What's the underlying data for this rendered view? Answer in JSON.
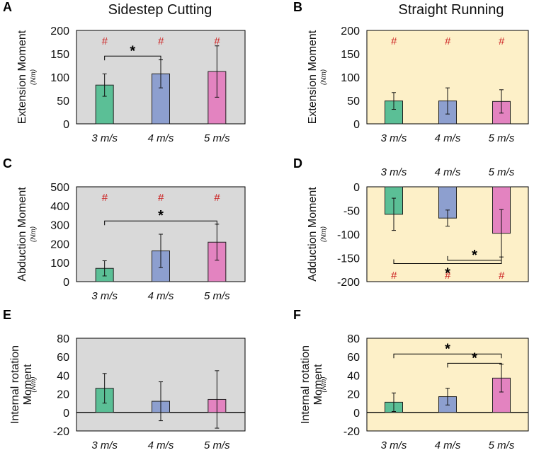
{
  "figure": {
    "column_titles": [
      "Sidestep Cutting",
      "Straight Running"
    ],
    "sig_hash_symbol": "#",
    "sig_star_symbol": "*",
    "colors": {
      "bar_fills": [
        "#5bbf96",
        "#8d9fcf",
        "#e383c0"
      ],
      "bar_stroke": "#222222",
      "hash_color": "#cc2222",
      "cutting_background": "#d9d9d9",
      "running_background": "#fdf0c8"
    }
  },
  "chart_data": [
    {
      "panel": "A",
      "type": "bar",
      "title": "Sidestep Cutting",
      "ylabel": "Extension Moment",
      "yunit": "(Nm)",
      "categories": [
        "3 m/s",
        "4 m/s",
        "5 m/s"
      ],
      "values": [
        83,
        107,
        112
      ],
      "errors": [
        24,
        30,
        55
      ],
      "ylim": [
        0,
        200
      ],
      "yticks": [
        "0",
        "50",
        "100",
        "150",
        "200"
      ],
      "category_axis": "bottom",
      "hash": [
        true,
        true,
        true
      ],
      "brackets": [
        {
          "from": 0,
          "to": 1
        }
      ]
    },
    {
      "panel": "B",
      "type": "bar",
      "title": "Straight Running",
      "ylabel": "Extension Moment",
      "yunit": "(Nm)",
      "categories": [
        "3 m/s",
        "4 m/s",
        "5 m/s"
      ],
      "values": [
        49,
        49,
        48
      ],
      "errors": [
        18,
        28,
        25
      ],
      "ylim": [
        0,
        200
      ],
      "yticks": [
        "0",
        "50",
        "100",
        "150",
        "200"
      ],
      "category_axis": "bottom",
      "hash": [
        true,
        true,
        true
      ],
      "brackets": []
    },
    {
      "panel": "C",
      "type": "bar",
      "title": "Sidestep Cutting",
      "ylabel": "Abduction Moment",
      "yunit": "(Nm)",
      "categories": [
        "3 m/s",
        "4 m/s",
        "5 m/s"
      ],
      "values": [
        70,
        162,
        208
      ],
      "errors": [
        40,
        88,
        95
      ],
      "ylim": [
        0,
        500
      ],
      "yticks": [
        "0",
        "100",
        "200",
        "300",
        "400",
        "500"
      ],
      "category_axis": "bottom",
      "hash": [
        true,
        true,
        true
      ],
      "brackets": [
        {
          "from": 0,
          "to": 2
        }
      ]
    },
    {
      "panel": "D",
      "type": "bar",
      "title": "Straight Running",
      "ylabel": "Adduction Moment",
      "yunit": "(Nm)",
      "categories": [
        "3 m/s",
        "4 m/s",
        "5 m/s"
      ],
      "values": [
        -58,
        -66,
        -98
      ],
      "errors": [
        34,
        17,
        50
      ],
      "ylim": [
        -200,
        0
      ],
      "yticks": [
        "0",
        "-50",
        "-100",
        "-150",
        "-200"
      ],
      "category_axis": "top",
      "hash": [
        true,
        true,
        true
      ],
      "brackets": [
        {
          "from": 1,
          "to": 2
        },
        {
          "from": 0,
          "to": 2
        }
      ]
    },
    {
      "panel": "E",
      "type": "bar",
      "title": "Sidestep Cutting",
      "ylabel": "Internal rotation Moment",
      "yunit": "(Nm)",
      "categories": [
        "3 m/s",
        "4 m/s",
        "5 m/s"
      ],
      "values": [
        26,
        12,
        14
      ],
      "errors": [
        16,
        21,
        31
      ],
      "ylim": [
        -20,
        80
      ],
      "yticks": [
        "-20",
        "0",
        "20",
        "40",
        "60",
        "80"
      ],
      "category_axis": "bottom",
      "hash": [
        false,
        false,
        false
      ],
      "brackets": []
    },
    {
      "panel": "F",
      "type": "bar",
      "title": "Straight Running",
      "ylabel": "Internal rotation Moment",
      "yunit": "(Nm)",
      "categories": [
        "3 m/s",
        "4 m/s",
        "5 m/s"
      ],
      "values": [
        11,
        17,
        37
      ],
      "errors": [
        10,
        9,
        15
      ],
      "ylim": [
        -20,
        80
      ],
      "yticks": [
        "-20",
        "0",
        "20",
        "40",
        "60",
        "80"
      ],
      "category_axis": "bottom",
      "hash": [
        false,
        false,
        false
      ],
      "brackets": [
        {
          "from": 0,
          "to": 2
        },
        {
          "from": 1,
          "to": 2
        }
      ]
    }
  ]
}
